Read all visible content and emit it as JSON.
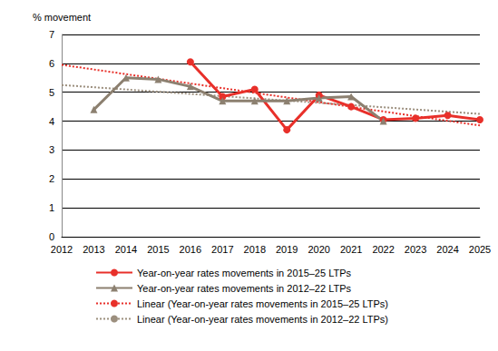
{
  "chart_data": {
    "type": "line",
    "ylabel": "% movement",
    "categories": [
      "2012",
      "2013",
      "2014",
      "2015",
      "2016",
      "2017",
      "2018",
      "2019",
      "2020",
      "2021",
      "2022",
      "2023",
      "2024",
      "2025"
    ],
    "series": [
      {
        "name": "Year-on-year rates movements in 2015–25 LTPs",
        "color": "#e8302a",
        "marker": "circle",
        "line_style": "solid",
        "values": [
          null,
          null,
          null,
          null,
          6.05,
          4.85,
          5.1,
          3.7,
          4.9,
          4.5,
          4.05,
          4.1,
          4.2,
          4.05
        ]
      },
      {
        "name": "Year-on-year rates movements in 2012–22 LTPs",
        "color": "#8c8070",
        "marker": "triangle",
        "line_style": "solid",
        "values": [
          null,
          4.4,
          5.5,
          5.45,
          5.2,
          4.7,
          4.7,
          4.7,
          4.8,
          4.85,
          4.0,
          null,
          null,
          null
        ]
      },
      {
        "name": "Linear (Year-on-year rates movements in 2015–25 LTPs)",
        "color": "#e8302a",
        "marker": "none",
        "line_style": "dotted",
        "values": [
          5.95,
          null,
          null,
          null,
          null,
          null,
          null,
          null,
          null,
          null,
          null,
          null,
          null,
          3.85
        ]
      },
      {
        "name": "Linear (Year-on-year rates movements in 2012–22 LTPs)",
        "color": "#9c8f7e",
        "marker": "none",
        "line_style": "dotted",
        "values": [
          5.25,
          null,
          null,
          null,
          null,
          null,
          null,
          null,
          null,
          null,
          null,
          null,
          null,
          4.25
        ]
      }
    ],
    "ylim": [
      0,
      7
    ],
    "yticks": [
      0,
      1,
      2,
      3,
      4,
      5,
      6,
      7
    ],
    "grid": true
  }
}
